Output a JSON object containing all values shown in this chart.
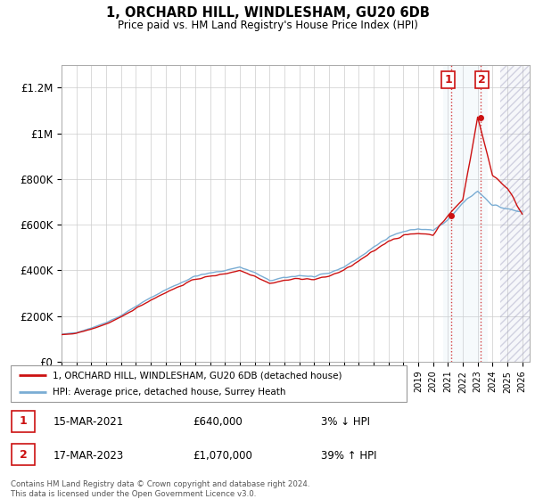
{
  "title": "1, ORCHARD HILL, WINDLESHAM, GU20 6DB",
  "subtitle": "Price paid vs. HM Land Registry's House Price Index (HPI)",
  "ylabel_ticks": [
    "£0",
    "£200K",
    "£400K",
    "£600K",
    "£800K",
    "£1M",
    "£1.2M"
  ],
  "ytick_values": [
    0,
    200000,
    400000,
    600000,
    800000,
    1000000,
    1200000
  ],
  "ylim": [
    0,
    1300000
  ],
  "xlim_start": 1995.0,
  "xlim_end": 2026.5,
  "hpi_color": "#7aadd4",
  "price_color": "#cc1111",
  "sale1_x": 2021.21,
  "sale1_y": 640000,
  "sale2_x": 2023.21,
  "sale2_y": 1070000,
  "sale1_date": "15-MAR-2021",
  "sale1_price": "£640,000",
  "sale1_hpi": "3% ↓ HPI",
  "sale2_date": "17-MAR-2023",
  "sale2_price": "£1,070,000",
  "sale2_hpi": "39% ↑ HPI",
  "legend_line1": "1, ORCHARD HILL, WINDLESHAM, GU20 6DB (detached house)",
  "legend_line2": "HPI: Average price, detached house, Surrey Heath",
  "footer": "Contains HM Land Registry data © Crown copyright and database right 2024.\nThis data is licensed under the Open Government Licence v3.0.",
  "grid_color": "#cccccc",
  "future_shade_start": 2024.5,
  "shade_color": "#dde8f5",
  "hatch_color": "#bbbbcc"
}
